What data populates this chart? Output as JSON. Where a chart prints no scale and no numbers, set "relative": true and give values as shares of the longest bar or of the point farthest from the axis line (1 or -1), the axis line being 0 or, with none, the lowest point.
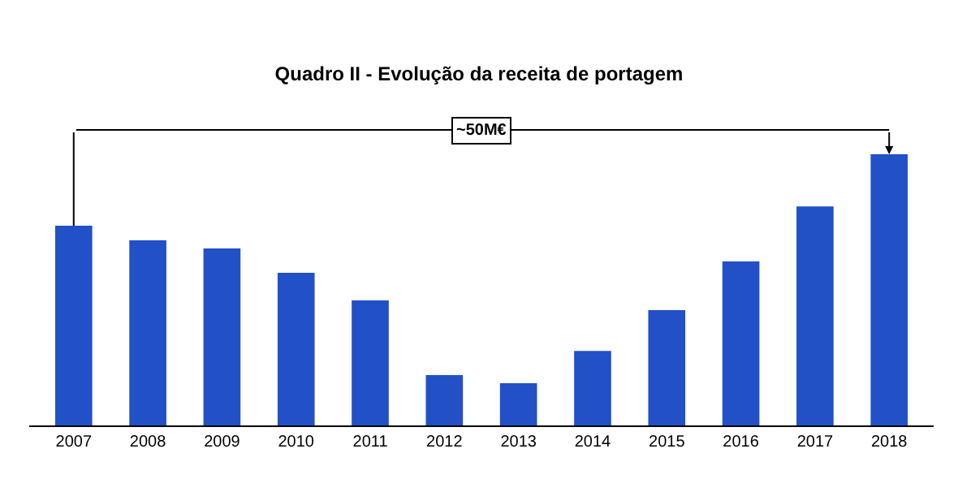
{
  "chart_data": {
    "type": "bar",
    "title": "Quadro II - Evolução da receita de portagem",
    "categories": [
      "2007",
      "2008",
      "2009",
      "2010",
      "2011",
      "2012",
      "2013",
      "2014",
      "2015",
      "2016",
      "2017",
      "2018"
    ],
    "values": [
      0.737,
      0.683,
      0.653,
      0.563,
      0.461,
      0.186,
      0.156,
      0.275,
      0.425,
      0.605,
      0.808,
      1
    ],
    "color": "#2250c6",
    "relative": true,
    "annotations": [
      "~50M€"
    ]
  }
}
